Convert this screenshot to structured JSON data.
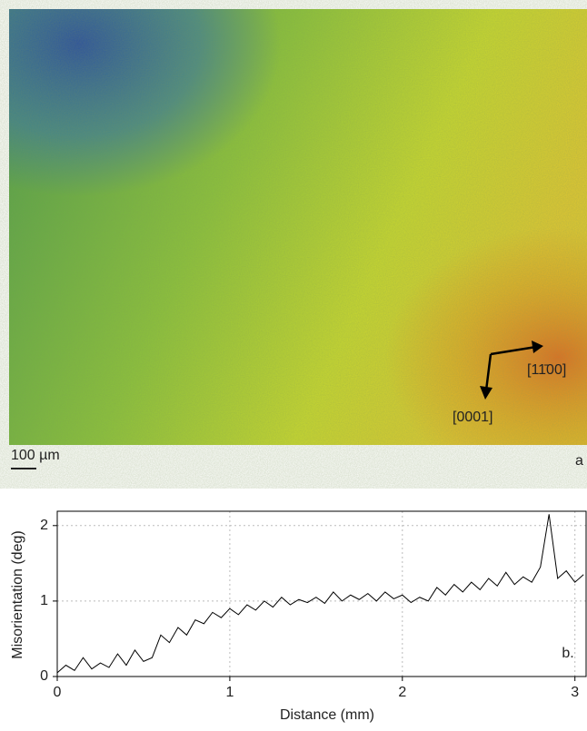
{
  "panel_a": {
    "scale_bar": "100 µm",
    "label": "a",
    "direction_1": "[11̄00]",
    "direction_2": "[0001]"
  },
  "chart_data": {
    "type": "line",
    "panel_label": "b.",
    "x_label": "Distance (mm)",
    "y_label": "Misorientation (deg)",
    "xlim": [
      0,
      3.07
    ],
    "ylim": [
      0,
      2.19
    ],
    "xticks": [
      0,
      1,
      2,
      3
    ],
    "yticks": [
      0,
      1,
      2
    ],
    "grid": true,
    "x": [
      0,
      0.05,
      0.1,
      0.15,
      0.2,
      0.25,
      0.3,
      0.35,
      0.4,
      0.45,
      0.5,
      0.55,
      0.6,
      0.65,
      0.7,
      0.75,
      0.8,
      0.85,
      0.9,
      0.95,
      1,
      1.05,
      1.1,
      1.15,
      1.2,
      1.25,
      1.3,
      1.35,
      1.4,
      1.45,
      1.5,
      1.55,
      1.6,
      1.65,
      1.7,
      1.75,
      1.8,
      1.85,
      1.9,
      1.95,
      2,
      2.05,
      2.1,
      2.15,
      2.2,
      2.25,
      2.3,
      2.35,
      2.4,
      2.45,
      2.5,
      2.55,
      2.6,
      2.65,
      2.7,
      2.75,
      2.8,
      2.85,
      2.9,
      2.95,
      3,
      3.05
    ],
    "series": [
      {
        "color": "#000000",
        "values": [
          0.05,
          0.15,
          0.08,
          0.25,
          0.1,
          0.18,
          0.12,
          0.3,
          0.15,
          0.35,
          0.2,
          0.25,
          0.55,
          0.45,
          0.65,
          0.55,
          0.75,
          0.7,
          0.85,
          0.78,
          0.9,
          0.82,
          0.95,
          0.88,
          1,
          0.92,
          1.05,
          0.95,
          1.02,
          0.98,
          1.05,
          0.97,
          1.12,
          1,
          1.08,
          1.02,
          1.1,
          1,
          1.12,
          1.03,
          1.08,
          0.98,
          1.05,
          1,
          1.18,
          1.08,
          1.22,
          1.12,
          1.25,
          1.15,
          1.3,
          1.2,
          1.38,
          1.22,
          1.32,
          1.25,
          1.45,
          2.15,
          1.3,
          1.4,
          1.25,
          1.35
        ]
      }
    ]
  }
}
